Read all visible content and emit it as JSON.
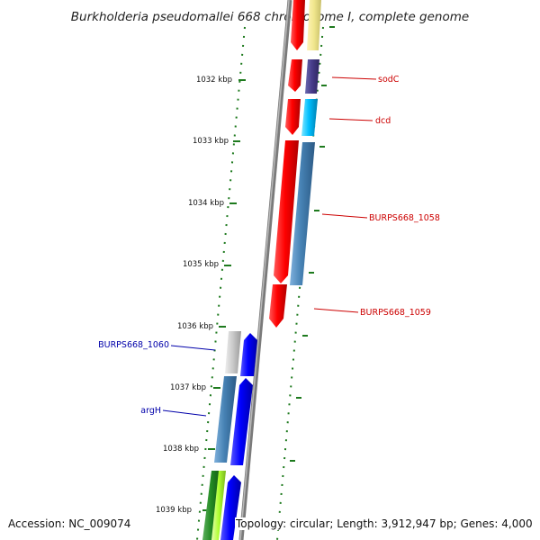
{
  "title": "Burkholderia pseudomallei 668 chromosome I, complete genome",
  "accession": "Accession: NC_009074",
  "topology": "Topology: circular; Length: 3,912,947 bp; Genes: 4,000",
  "colors": {
    "backbone": "#8c8c8c",
    "tick": "#1e7a1e",
    "forward_label": "#cc0000",
    "reverse_label": "#0000aa"
  },
  "ticks": [
    "1032 kbp",
    "1033 kbp",
    "1034 kbp",
    "1035 kbp",
    "1036 kbp",
    "1037 kbp",
    "1038 kbp",
    "1039 kbp"
  ],
  "gene_labels": {
    "sodC": "sodC",
    "dcd": "dcd",
    "burps1058": "BURPS668_1058",
    "burps1059": "BURPS668_1059",
    "burps1060": "BURPS668_1060",
    "argH": "argH"
  }
}
